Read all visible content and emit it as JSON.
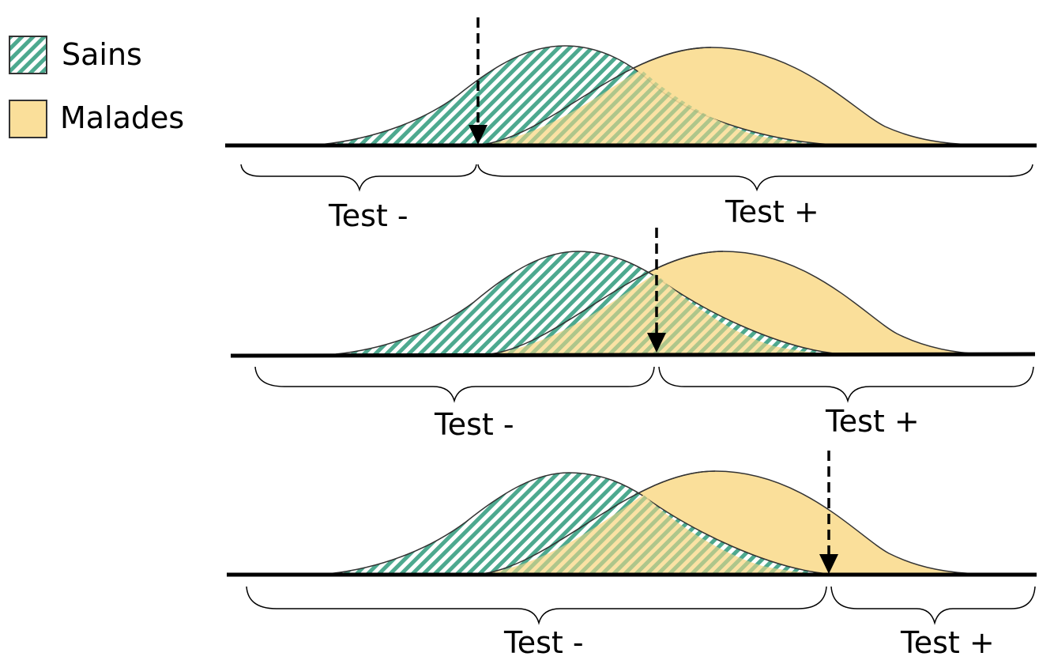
{
  "legend": {
    "healthy_label": "Sains",
    "sick_label": "Malades"
  },
  "colors": {
    "healthy_stripe": "#4da98f",
    "healthy_outline": "#333333",
    "sick_fill": "#fadf9a",
    "axis": "#000000",
    "background": "#ffffff"
  },
  "panels": [
    {
      "negative_label": "Test -",
      "positive_label": "Test +",
      "threshold": "low"
    },
    {
      "negative_label": "Test -",
      "positive_label": "Test +",
      "threshold": "middle"
    },
    {
      "negative_label": "Test -",
      "positive_label": "Test +",
      "threshold": "high"
    }
  ]
}
